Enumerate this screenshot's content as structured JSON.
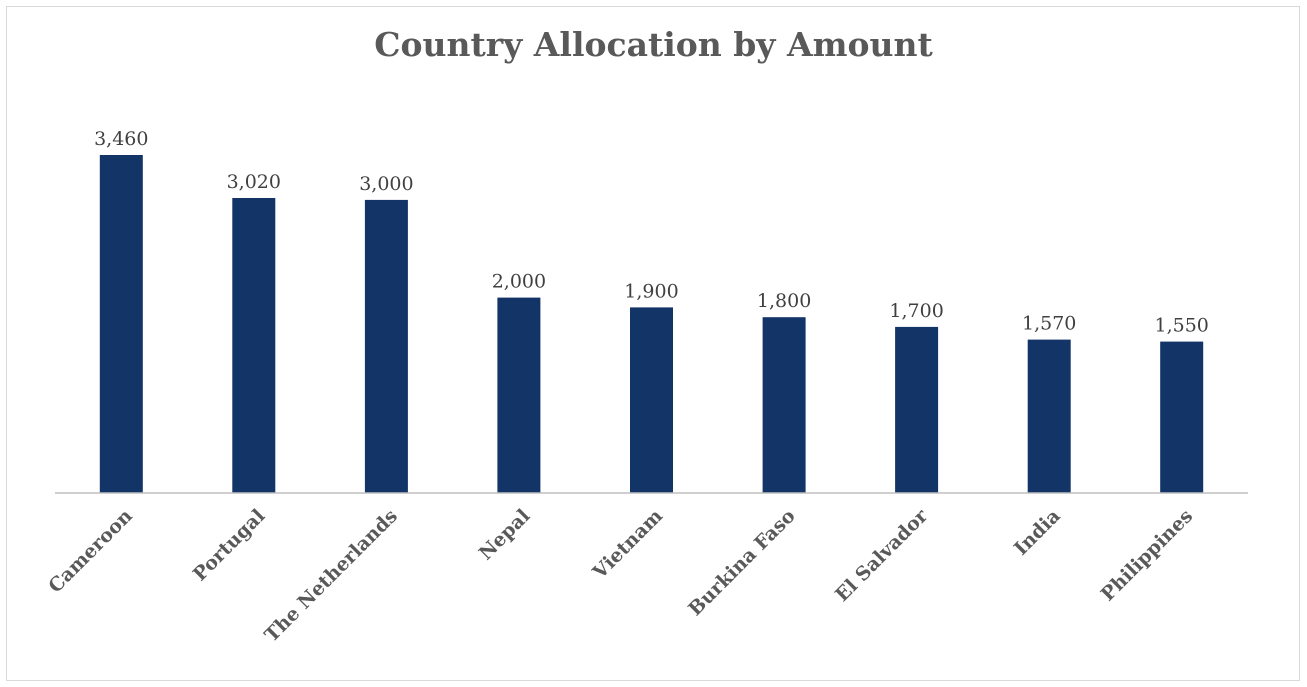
{
  "chart_data": {
    "type": "bar",
    "title": "Country Allocation by Amount",
    "categories": [
      "Cameroon",
      "Portugal",
      "The Netherlands",
      "Nepal",
      "Vietnam",
      "Burkina Faso",
      "El Salvador",
      "India",
      "Philippines"
    ],
    "values": [
      3460,
      3020,
      3000,
      2000,
      1900,
      1800,
      1700,
      1570,
      1550
    ],
    "value_labels": [
      "3,460",
      "3,020",
      "3,000",
      "2,000",
      "1,900",
      "1,800",
      "1,700",
      "1,570",
      "1,550"
    ],
    "xlabel": "",
    "ylabel": "",
    "ylim": [
      0,
      3460
    ],
    "grid": false,
    "legend": "none",
    "bar_color": "#123466"
  }
}
